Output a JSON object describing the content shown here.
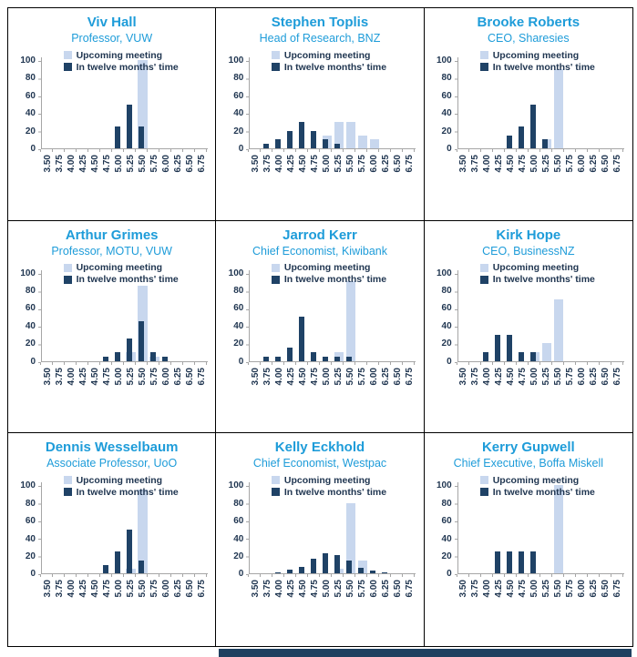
{
  "legend": {
    "upcoming": "Upcoming meeting",
    "twelve": "In twelve months' time"
  },
  "axis": {
    "y_ticks": [
      100,
      80,
      60,
      40,
      20,
      0
    ],
    "x_ticks": [
      "3.50",
      "3.75",
      "4.00",
      "4.25",
      "4.50",
      "4.75",
      "5.00",
      "5.25",
      "5.50",
      "5.75",
      "6.00",
      "6.25",
      "6.50",
      "6.75"
    ],
    "ylim": [
      0,
      100
    ]
  },
  "colors": {
    "title": "#1E9CD9",
    "light_bar": "#C8D7EE",
    "dark_bar": "#1F4266",
    "text": "#1F3550",
    "axis_line": "#A6A6A6",
    "cutoff_band": "#1F4060",
    "border": "#000000"
  },
  "chart_data": [
    {
      "type": "bar",
      "name": "Viv Hall",
      "role": "Professor, VUW",
      "categories": [
        "3.50",
        "3.75",
        "4.00",
        "4.25",
        "4.50",
        "4.75",
        "5.00",
        "5.25",
        "5.50",
        "5.75",
        "6.00",
        "6.25",
        "6.50",
        "6.75"
      ],
      "ylim": [
        0,
        100
      ],
      "legend_position": "top",
      "series": [
        {
          "name": "Upcoming meeting",
          "values": [
            0,
            0,
            0,
            0,
            0,
            0,
            0,
            0,
            100,
            0,
            0,
            0,
            0,
            0
          ]
        },
        {
          "name": "In twelve months' time",
          "values": [
            0,
            0,
            0,
            0,
            0,
            0,
            25,
            50,
            25,
            0,
            0,
            0,
            0,
            0
          ]
        }
      ]
    },
    {
      "type": "bar",
      "name": "Stephen Toplis",
      "role": "Head of Research, BNZ",
      "categories": [
        "3.50",
        "3.75",
        "4.00",
        "4.25",
        "4.50",
        "4.75",
        "5.00",
        "5.25",
        "5.50",
        "5.75",
        "6.00",
        "6.25",
        "6.50",
        "6.75"
      ],
      "ylim": [
        0,
        100
      ],
      "legend_position": "top",
      "series": [
        {
          "name": "Upcoming meeting",
          "values": [
            0,
            0,
            0,
            0,
            0,
            0,
            15,
            30,
            30,
            15,
            10,
            0,
            0,
            0
          ]
        },
        {
          "name": "In twelve months' time",
          "values": [
            0,
            5,
            10,
            20,
            30,
            20,
            10,
            5,
            0,
            0,
            0,
            0,
            0,
            0
          ]
        }
      ]
    },
    {
      "type": "bar",
      "name": "Brooke Roberts",
      "role": "CEO, Sharesies",
      "categories": [
        "3.50",
        "3.75",
        "4.00",
        "4.25",
        "4.50",
        "4.75",
        "5.00",
        "5.25",
        "5.50",
        "5.75",
        "6.00",
        "6.25",
        "6.50",
        "6.75"
      ],
      "ylim": [
        0,
        100
      ],
      "legend_position": "top",
      "series": [
        {
          "name": "Upcoming meeting",
          "values": [
            0,
            0,
            0,
            0,
            0,
            0,
            0,
            10,
            90,
            0,
            0,
            0,
            0,
            0
          ]
        },
        {
          "name": "In twelve months' time",
          "values": [
            0,
            0,
            0,
            0,
            15,
            25,
            50,
            10,
            0,
            0,
            0,
            0,
            0,
            0
          ]
        }
      ]
    },
    {
      "type": "bar",
      "name": "Arthur Grimes",
      "role": "Professor, MOTU, VUW",
      "categories": [
        "3.50",
        "3.75",
        "4.00",
        "4.25",
        "4.50",
        "4.75",
        "5.00",
        "5.25",
        "5.50",
        "5.75",
        "6.00",
        "6.25",
        "6.50",
        "6.75"
      ],
      "ylim": [
        0,
        100
      ],
      "legend_position": "top",
      "series": [
        {
          "name": "Upcoming meeting",
          "values": [
            0,
            0,
            0,
            0,
            0,
            0,
            0,
            10,
            85,
            5,
            0,
            0,
            0,
            0
          ]
        },
        {
          "name": "In twelve months' time",
          "values": [
            0,
            0,
            0,
            0,
            0,
            5,
            10,
            25,
            45,
            10,
            5,
            0,
            0,
            0
          ]
        }
      ]
    },
    {
      "type": "bar",
      "name": "Jarrod Kerr",
      "role": "Chief Economist, Kiwibank",
      "categories": [
        "3.50",
        "3.75",
        "4.00",
        "4.25",
        "4.50",
        "4.75",
        "5.00",
        "5.25",
        "5.50",
        "5.75",
        "6.00",
        "6.25",
        "6.50",
        "6.75"
      ],
      "ylim": [
        0,
        100
      ],
      "legend_position": "top",
      "series": [
        {
          "name": "Upcoming meeting",
          "values": [
            0,
            0,
            0,
            0,
            0,
            0,
            0,
            10,
            90,
            0,
            0,
            0,
            0,
            0
          ]
        },
        {
          "name": "In twelve months' time",
          "values": [
            0,
            5,
            5,
            15,
            50,
            10,
            5,
            5,
            5,
            0,
            0,
            0,
            0,
            0
          ]
        }
      ]
    },
    {
      "type": "bar",
      "name": "Kirk Hope",
      "role": "CEO, BusinessNZ",
      "categories": [
        "3.50",
        "3.75",
        "4.00",
        "4.25",
        "4.50",
        "4.75",
        "5.00",
        "5.25",
        "5.50",
        "5.75",
        "6.00",
        "6.25",
        "6.50",
        "6.75"
      ],
      "ylim": [
        0,
        100
      ],
      "legend_position": "top",
      "series": [
        {
          "name": "Upcoming meeting",
          "values": [
            0,
            0,
            0,
            0,
            0,
            0,
            10,
            20,
            70,
            0,
            0,
            0,
            0,
            0
          ]
        },
        {
          "name": "In twelve months' time",
          "values": [
            0,
            0,
            10,
            30,
            30,
            10,
            10,
            0,
            0,
            0,
            0,
            0,
            0,
            0
          ]
        }
      ]
    },
    {
      "type": "bar",
      "name": "Dennis Wesselbaum",
      "role": "Associate Professor, UoO",
      "categories": [
        "3.50",
        "3.75",
        "4.00",
        "4.25",
        "4.50",
        "4.75",
        "5.00",
        "5.25",
        "5.50",
        "5.75",
        "6.00",
        "6.25",
        "6.50",
        "6.75"
      ],
      "ylim": [
        0,
        100
      ],
      "legend_position": "top",
      "series": [
        {
          "name": "Upcoming meeting",
          "values": [
            0,
            0,
            0,
            0,
            0,
            0,
            0,
            5,
            95,
            0,
            0,
            0,
            0,
            0
          ]
        },
        {
          "name": "In twelve months' time",
          "values": [
            0,
            0,
            0,
            0,
            0,
            10,
            25,
            50,
            15,
            0,
            0,
            0,
            0,
            0
          ]
        }
      ]
    },
    {
      "type": "bar",
      "name": "Kelly Eckhold",
      "role": "Chief Economist, Westpac",
      "categories": [
        "3.50",
        "3.75",
        "4.00",
        "4.25",
        "4.50",
        "4.75",
        "5.00",
        "5.25",
        "5.50",
        "5.75",
        "6.00",
        "6.25",
        "6.50",
        "6.75"
      ],
      "ylim": [
        0,
        100
      ],
      "legend_position": "top",
      "series": [
        {
          "name": "Upcoming meeting",
          "values": [
            0,
            0,
            0,
            0,
            0,
            0,
            0,
            5,
            80,
            15,
            0,
            0,
            0,
            0
          ]
        },
        {
          "name": "In twelve months' time",
          "values": [
            0,
            0,
            1,
            4,
            8,
            17,
            23,
            21,
            15,
            7,
            3,
            1,
            0,
            0
          ]
        }
      ]
    },
    {
      "type": "bar",
      "name": "Kerry Gupwell",
      "role": "Chief Executive, Boffa Miskell",
      "categories": [
        "3.50",
        "3.75",
        "4.00",
        "4.25",
        "4.50",
        "4.75",
        "5.00",
        "5.25",
        "5.50",
        "5.75",
        "6.00",
        "6.25",
        "6.50",
        "6.75"
      ],
      "ylim": [
        0,
        100
      ],
      "legend_position": "top",
      "series": [
        {
          "name": "Upcoming meeting",
          "values": [
            0,
            0,
            0,
            0,
            0,
            0,
            0,
            0,
            100,
            0,
            0,
            0,
            0,
            0
          ]
        },
        {
          "name": "In twelve months' time",
          "values": [
            0,
            0,
            0,
            25,
            25,
            25,
            25,
            0,
            0,
            0,
            0,
            0,
            0,
            0
          ]
        }
      ]
    }
  ]
}
